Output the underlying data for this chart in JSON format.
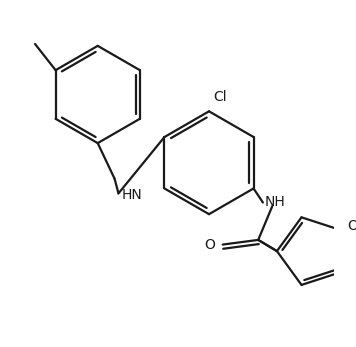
{
  "bg_color": "#ffffff",
  "line_color": "#1a1a1a",
  "line_width": 1.6,
  "font_size": 10,
  "fig_width": 3.56,
  "fig_height": 3.47,
  "dpi": 100,
  "xlim": [
    0,
    356
  ],
  "ylim": [
    0,
    347
  ]
}
